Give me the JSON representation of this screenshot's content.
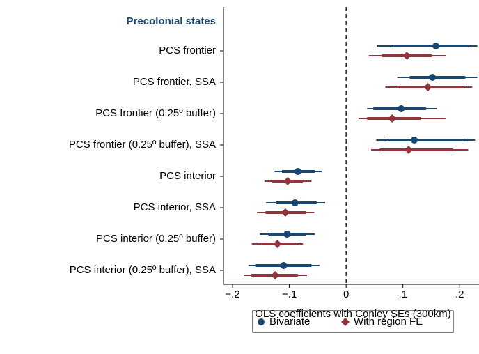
{
  "chart_data": {
    "type": "coefplot",
    "group_label": "Precolonial states",
    "categories": [
      "PCS frontier",
      "PCS frontier, SSA",
      "PCS frontier (0.25º buffer)",
      "PCS frontier (0.25º buffer), SSA",
      "PCS interior",
      "PCS interior, SSA",
      "PCS interior (0.25º buffer)",
      "PCS interior (0.25º buffer), SSA"
    ],
    "x_label": "OLS coefficients with Conley SEs (300km)",
    "xlim": [
      -0.216,
      0.234
    ],
    "xticks": [
      {
        "value": -0.2,
        "label": "−.2"
      },
      {
        "value": -0.1,
        "label": "−.1"
      },
      0,
      {
        "value": 0.1,
        "label": ".1"
      },
      {
        "value": 0.2,
        "label": ".2"
      }
    ],
    "reference_line": 0,
    "series": [
      {
        "name": "Bivariate",
        "color": "#1a476f",
        "marker": "circle",
        "values": [
          0.158,
          0.152,
          0.097,
          0.12,
          -0.085,
          -0.09,
          -0.104,
          -0.11
        ],
        "ci_low": [
          0.054,
          0.09,
          0.037,
          0.053,
          -0.126,
          -0.141,
          -0.152,
          -0.172
        ],
        "ci_high": [
          0.231,
          0.231,
          0.16,
          0.227,
          -0.043,
          -0.037,
          -0.055,
          -0.047
        ],
        "ci90_low": [
          0.08,
          0.112,
          0.048,
          0.069,
          -0.113,
          -0.124,
          -0.137,
          -0.16
        ],
        "ci90_high": [
          0.215,
          0.21,
          0.141,
          0.21,
          -0.055,
          -0.052,
          -0.07,
          -0.061
        ]
      },
      {
        "name": "With region FE",
        "color": "#90353b",
        "marker": "diamond",
        "values": [
          0.107,
          0.144,
          0.081,
          0.11,
          -0.103,
          -0.107,
          -0.121,
          -0.125
        ],
        "ci_low": [
          0.04,
          0.069,
          0.022,
          0.044,
          -0.144,
          -0.157,
          -0.166,
          -0.18
        ],
        "ci_high": [
          0.175,
          0.222,
          0.175,
          0.215,
          -0.061,
          -0.056,
          -0.076,
          -0.069
        ],
        "ci90_low": [
          0.063,
          0.093,
          0.037,
          0.059,
          -0.13,
          -0.142,
          -0.152,
          -0.167
        ],
        "ci90_high": [
          0.151,
          0.206,
          0.131,
          0.188,
          -0.076,
          -0.07,
          -0.088,
          -0.085
        ]
      }
    ]
  }
}
